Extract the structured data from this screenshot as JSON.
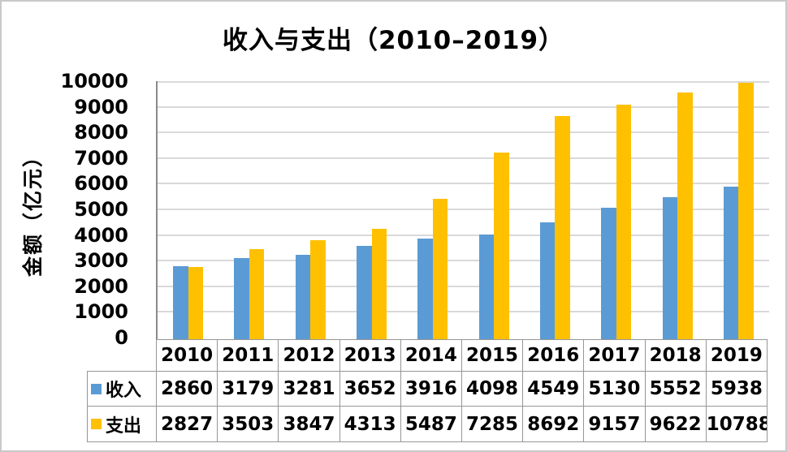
{
  "chart_data": {
    "type": "bar",
    "title": "收入与支出（2010–2019）",
    "ylabel": "金额（亿元）",
    "xlabel": "",
    "categories": [
      "2010",
      "2011",
      "2012",
      "2013",
      "2014",
      "2015",
      "2016",
      "2017",
      "2018",
      "2019"
    ],
    "series": [
      {
        "name": "收入",
        "color": "#5B9BD5",
        "values": [
          2860,
          3179,
          3281,
          3652,
          3916,
          4098,
          4549,
          5130,
          5552,
          5938
        ]
      },
      {
        "name": "支出",
        "color": "#FFC000",
        "values": [
          2827,
          3503,
          3847,
          4313,
          5487,
          7285,
          8692,
          9157,
          9622,
          10788
        ]
      }
    ],
    "ylim": [
      0,
      10000
    ],
    "yticks": [
      0,
      1000,
      2000,
      3000,
      4000,
      5000,
      6000,
      7000,
      8000,
      9000,
      10000
    ],
    "grid": true,
    "gridline_color": "#D9D9D9",
    "axis_line_color": "#8A8A8A",
    "table_border_color": "#969696",
    "legend_position": "data-table-left",
    "values_clipped_at_ymax": true
  }
}
